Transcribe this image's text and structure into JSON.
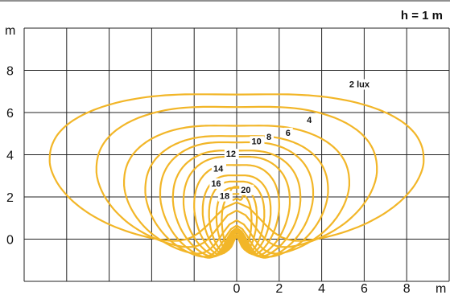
{
  "chart_data": {
    "type": "contour",
    "title": "h = 1 m",
    "xlabel": "m",
    "ylabel": "m",
    "xlim": [
      -10,
      10
    ],
    "ylim": [
      -2,
      10
    ],
    "x_ticks": [
      0,
      2,
      4,
      6,
      8
    ],
    "y_ticks": [
      0,
      2,
      4,
      6,
      8
    ],
    "grid": true,
    "line_color": "#f2b628",
    "contours": [
      {
        "label": "2 lux",
        "value": 2,
        "top": 7.0,
        "halfwidth": 8.8,
        "bottom": -0.3,
        "label_at": [
          5.3,
          7.2
        ]
      },
      {
        "label": "4",
        "value": 4,
        "top": 6.4,
        "halfwidth": 6.6,
        "bottom": -0.6,
        "label_at": [
          3.3,
          5.5
        ]
      },
      {
        "label": "6",
        "value": 6,
        "top": 5.5,
        "halfwidth": 5.3,
        "bottom": -0.9,
        "label_at": [
          2.3,
          4.9
        ]
      },
      {
        "label": "8",
        "value": 8,
        "top": 5.0,
        "halfwidth": 4.3,
        "bottom": -1.05,
        "label_at": [
          1.4,
          4.7
        ]
      },
      {
        "label": "10",
        "value": 10,
        "top": 4.7,
        "halfwidth": 3.6,
        "bottom": -1.1,
        "label_at": [
          0.7,
          4.5
        ]
      },
      {
        "label": "",
        "value": 11,
        "top": 4.3,
        "halfwidth": 3.0,
        "bottom": -1.05
      },
      {
        "label": "12",
        "value": 12,
        "top": 4.0,
        "halfwidth": 2.5,
        "bottom": -1.0,
        "label_at": [
          -0.5,
          3.9
        ]
      },
      {
        "label": "",
        "value": 13,
        "top": 3.6,
        "halfwidth": 2.0,
        "bottom": -0.95
      },
      {
        "label": "14",
        "value": 14,
        "top": 3.1,
        "halfwidth": 1.6,
        "bottom": -0.9,
        "label_at": [
          -1.1,
          3.2
        ]
      },
      {
        "label": "",
        "value": 15,
        "top": 2.8,
        "halfwidth": 1.3,
        "bottom": -0.85
      },
      {
        "label": "16",
        "value": 16,
        "top": 2.5,
        "halfwidth": 0.95,
        "bottom": -0.8,
        "label_at": [
          -1.2,
          2.5
        ]
      },
      {
        "label": "18",
        "value": 18,
        "top": 2.2,
        "halfwidth": 0.7,
        "bottom": -0.75,
        "label_at": [
          -0.8,
          1.9
        ]
      },
      {
        "label": "20",
        "value": 20,
        "top": 2.5,
        "halfwidth": 0.3,
        "bottom": 1.7,
        "label_at": [
          0.2,
          2.2
        ]
      }
    ]
  }
}
